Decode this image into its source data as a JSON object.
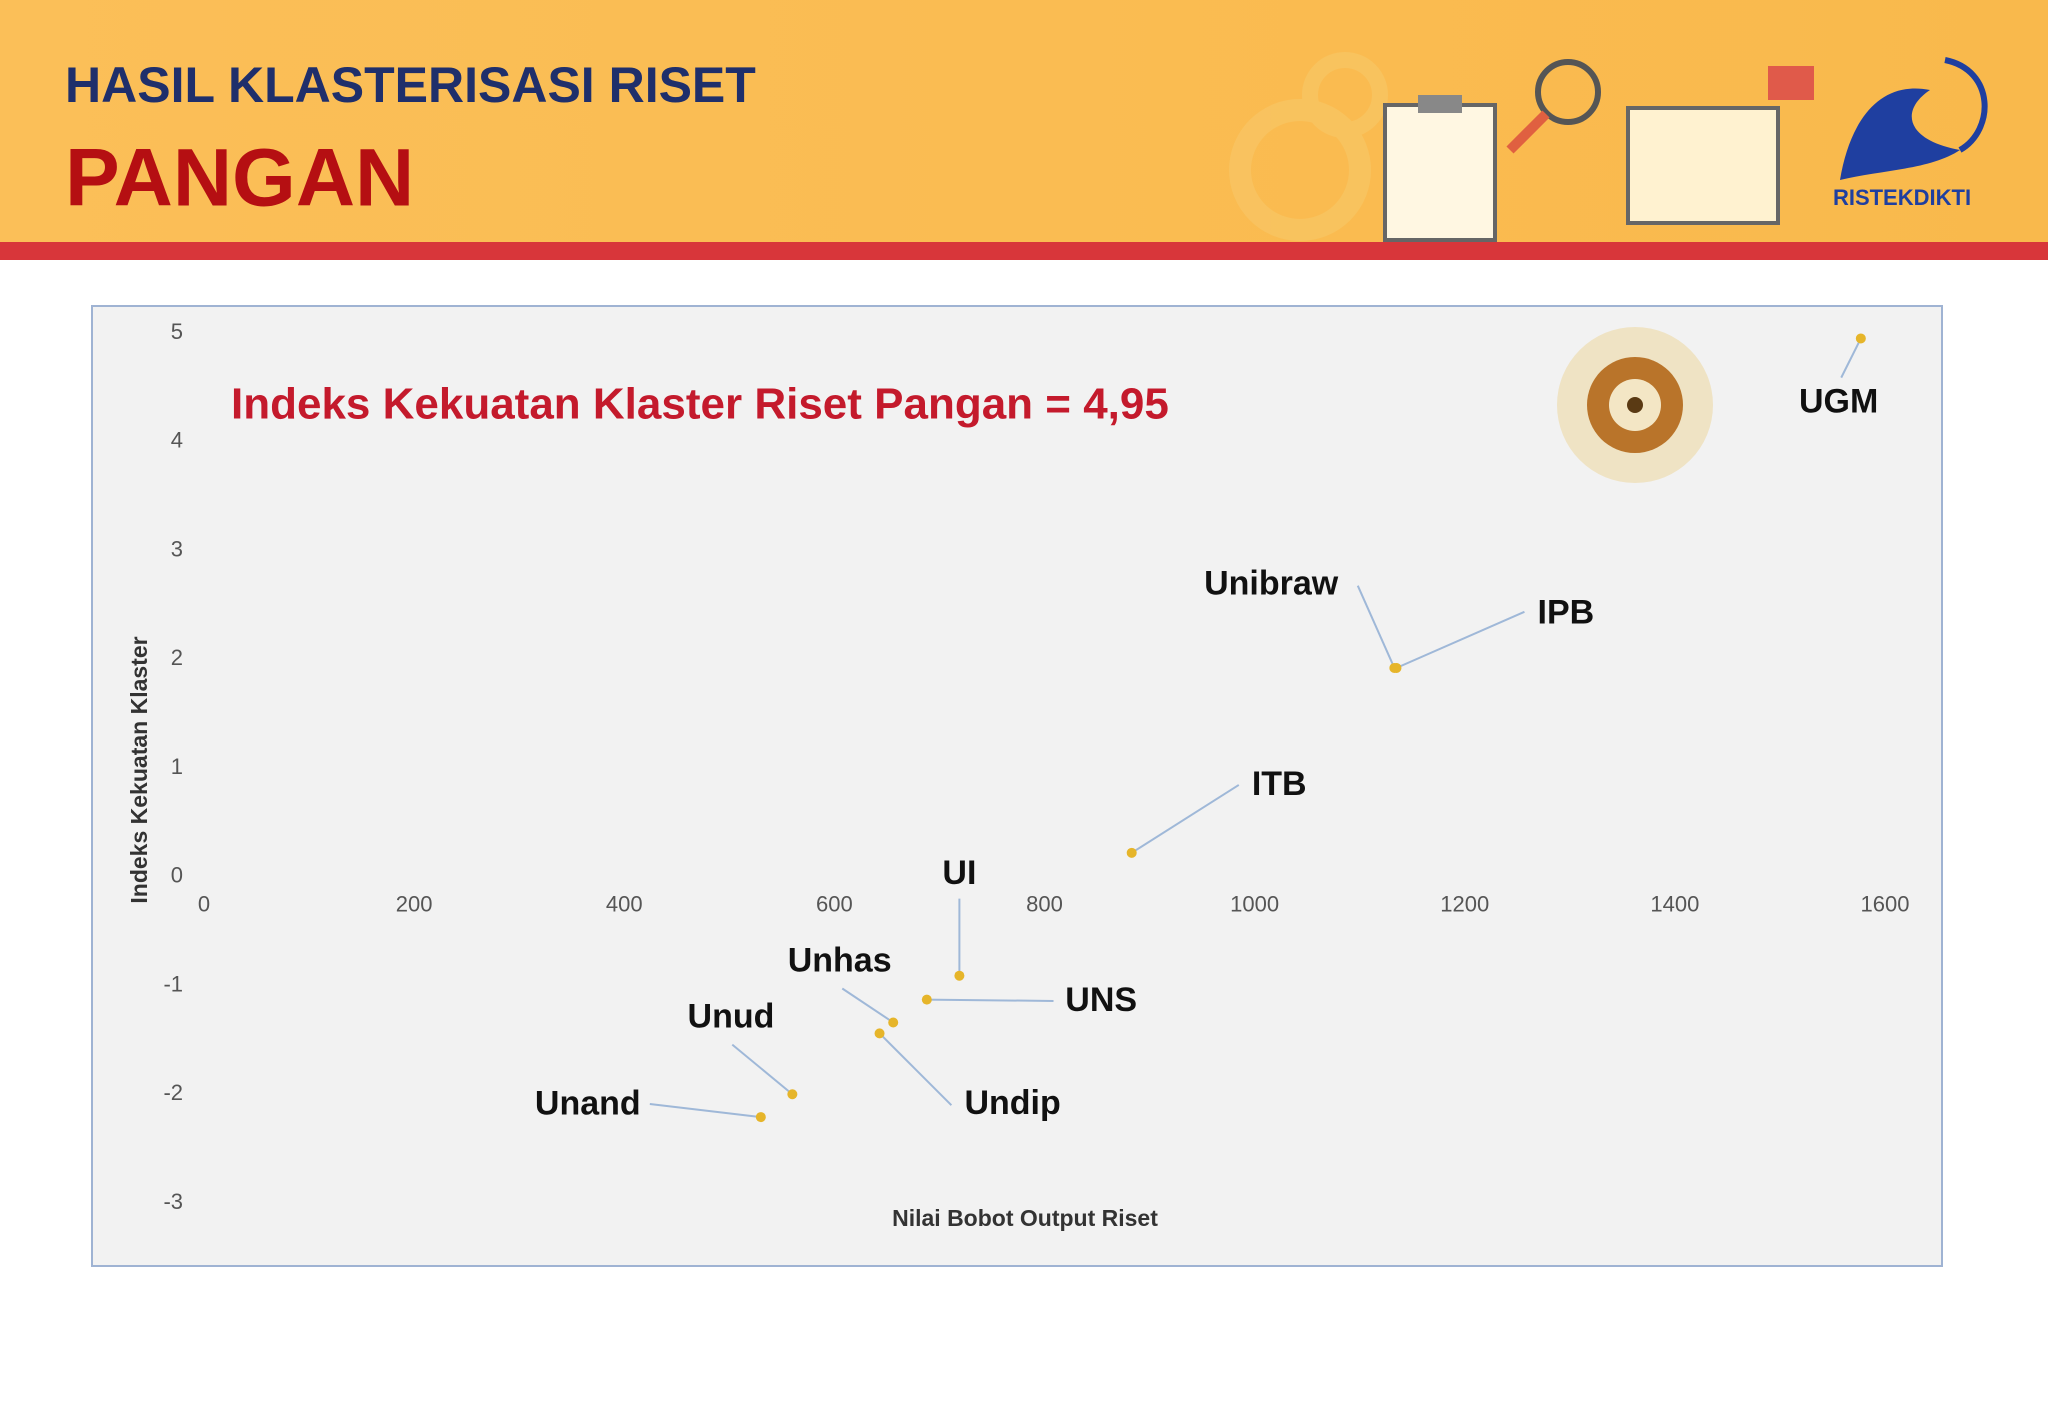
{
  "header": {
    "title": "HASIL KLASTERISASI RISET",
    "subtitle": "PANGAN",
    "logo": "RISTEKDIKTI"
  },
  "chart_data": {
    "type": "scatter",
    "annotation": "Indeks Kekuatan Klaster Riset Pangan = 4,95",
    "xlabel": "Nilai Bobot Output Riset",
    "ylabel": "Indeks Kekuatan Klaster",
    "labels": [
      "UGM",
      "IPB",
      "Unibraw",
      "ITB",
      "UI",
      "UNS",
      "Unhas",
      "Undip",
      "Unud",
      "Unand"
    ],
    "x": [
      1577,
      1135,
      1133,
      883,
      719,
      688,
      656,
      643,
      560,
      530
    ],
    "values": [
      4.95,
      1.92,
      1.92,
      0.22,
      -0.91,
      -1.13,
      -1.34,
      -1.44,
      -2.0,
      -2.21
    ],
    "color": "#e6b52a",
    "xlim": [
      0,
      1600
    ],
    "xticks": [
      0,
      200,
      400,
      600,
      800,
      1000,
      1200,
      1400,
      1600
    ],
    "ylim": [
      -3,
      5
    ],
    "yticks": [
      -3,
      -2,
      -1,
      0,
      1,
      2,
      3,
      4,
      5
    ],
    "grid": false
  }
}
